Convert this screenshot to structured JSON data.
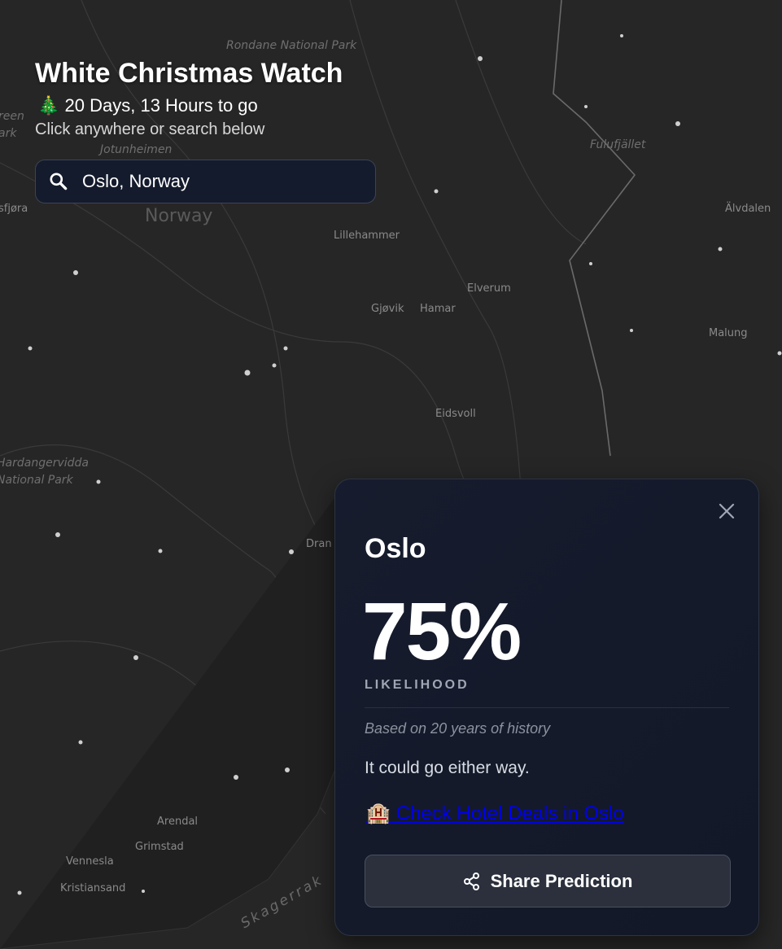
{
  "header": {
    "title": "White Christmas Watch",
    "countdown_icon": "🎄",
    "countdown": "20 Days, 13 Hours to go",
    "hint": "Click anywhere or search below"
  },
  "search": {
    "value": "Oslo, Norway",
    "icon": "search-icon"
  },
  "map": {
    "labels": [
      "Rondane National Park",
      "Jotunheimen",
      "Norway",
      "Lillehammer",
      "Elverum",
      "Gjøvik",
      "Hamar",
      "Fulufjället",
      "Älvdalen",
      "Malung",
      "Eidsvoll",
      "Hardangervidda",
      "National Park",
      "Dran",
      "Arendal",
      "Grimstad",
      "Vennesla",
      "Kristiansand",
      "Skagerrak",
      "reen",
      "ark",
      "sfjøra"
    ]
  },
  "card": {
    "city": "Oslo",
    "likelihood": "75%",
    "likelihood_value": 75,
    "likelihood_label": "LIKELIHOOD",
    "basis": "Based on 20 years of history",
    "verdict": "It could go either way.",
    "hotel_icon": "🏨",
    "hotel_link": "Check Hotel Deals in Oslo",
    "share_label": "Share Prediction"
  },
  "colors": {
    "card_bg": "#141a2a",
    "link": "#0000ee",
    "map_bg": "#262626"
  }
}
